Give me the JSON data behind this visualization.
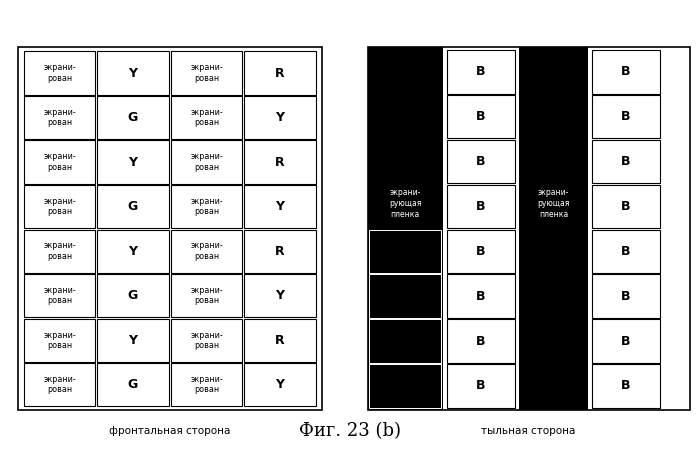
{
  "fig_width": 7.0,
  "fig_height": 4.51,
  "dpi": 100,
  "bg_color": "#ffffff",
  "front_label": "фронтальная сторона",
  "back_label": "тыльная сторона",
  "fig_caption": "Фиг. 23 (b)",
  "front": {
    "num_rows": 8,
    "col2_labels": [
      "Y",
      "G",
      "Y",
      "G",
      "Y",
      "G",
      "Y",
      "G"
    ],
    "col4_labels": [
      "R",
      "Y",
      "R",
      "Y",
      "R",
      "Y",
      "R",
      "Y"
    ]
  },
  "back": {
    "num_rows": 8,
    "shield_label": "экрани-\nрующая\nпленка"
  }
}
